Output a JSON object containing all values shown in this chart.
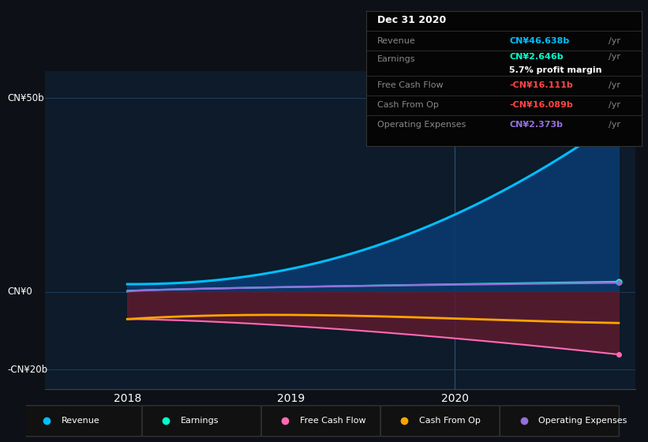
{
  "bg_color": "#0d1117",
  "plot_bg_color": "#0d1b2a",
  "grid_color": "#1e3a5a",
  "ylim": [
    -25,
    57
  ],
  "yticks": [
    -20,
    0,
    50
  ],
  "ytick_labels": [
    "-CN¥20b",
    "CN¥0",
    "CN¥50b"
  ],
  "xlim": [
    2017.5,
    2021.1
  ],
  "xticks": [
    2018,
    2019,
    2020
  ],
  "revenue_color": "#00bfff",
  "earnings_color": "#00ffcc",
  "fcf_color": "#ff69b4",
  "cashfromop_color": "#ffa500",
  "opex_color": "#9370db",
  "revenue_fill_color": "#0a3a6e",
  "fcf_fill_color": "#5c1a2e",
  "info_box": {
    "date": "Dec 31 2020",
    "revenue_label": "Revenue",
    "revenue_value": "CN¥46.638b",
    "revenue_color": "#00bfff",
    "earnings_label": "Earnings",
    "earnings_value": "CN¥2.646b",
    "earnings_color": "#00ffcc",
    "profit_margin": "5.7% profit margin",
    "fcf_label": "Free Cash Flow",
    "fcf_value": "-CN¥16.111b",
    "fcf_color": "#ff4444",
    "cashop_label": "Cash From Op",
    "cashop_value": "-CN¥16.089b",
    "cashop_color": "#ff4444",
    "opex_label": "Operating Expenses",
    "opex_value": "CN¥2.373b",
    "opex_color": "#9370db"
  },
  "legend_items": [
    {
      "label": "Revenue",
      "color": "#00bfff"
    },
    {
      "label": "Earnings",
      "color": "#00ffcc"
    },
    {
      "label": "Free Cash Flow",
      "color": "#ff69b4"
    },
    {
      "label": "Cash From Op",
      "color": "#ffa500"
    },
    {
      "label": "Operating Expenses",
      "color": "#9370db"
    }
  ]
}
